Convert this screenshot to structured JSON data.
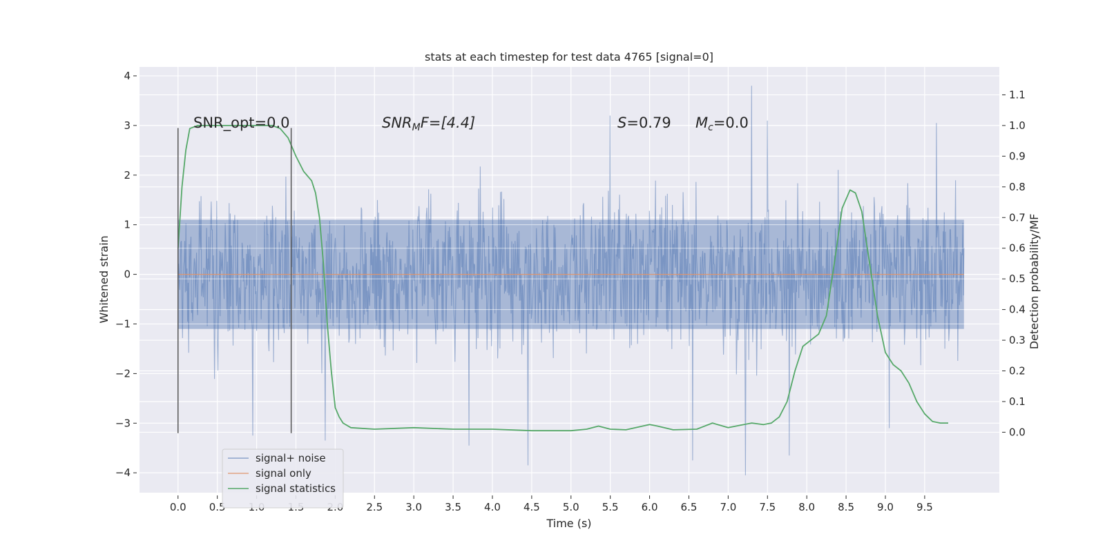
{
  "chart_data": {
    "type": "line",
    "title": "stats at each timestep for test data 4765 [signal=0]",
    "xlabel": "Time (s)",
    "ylabel": "Whitened strain",
    "ylabel_right": "Detection probability/MF",
    "xlim": [
      -0.49,
      10.45
    ],
    "ylim": [
      -4.4,
      4.18
    ],
    "ylim_right": [
      -0.197,
      1.191
    ],
    "x_ticks": [
      "0.0",
      "0.5",
      "1.0",
      "1.5",
      "2.0",
      "2.5",
      "3.0",
      "3.5",
      "4.0",
      "4.5",
      "5.0",
      "5.5",
      "6.0",
      "6.5",
      "7.0",
      "7.5",
      "8.0",
      "8.5",
      "9.0",
      "9.5"
    ],
    "y_ticks": [
      "−4",
      "−3",
      "−2",
      "−1",
      "0",
      "1",
      "2",
      "3",
      "4"
    ],
    "y_ticks_right": [
      "0.0",
      "0.1",
      "0.2",
      "0.3",
      "0.4",
      "0.5",
      "0.6",
      "0.7",
      "0.8",
      "0.9",
      "1.0",
      "1.1"
    ],
    "grid": true,
    "legend_position": "lower-left",
    "annotations": {
      "snr_opt": "SNR_opt=0.0",
      "snr_mf_base": "SNR",
      "snr_mf_sub": "M",
      "snr_mf_rest": "F=[4.4]",
      "s_var": "S",
      "s_val": "=0.79",
      "mc_var": "M",
      "mc_sub": "c",
      "mc_val": "=0.0"
    },
    "vertical_markers": [
      0.0,
      1.44
    ],
    "marker_range": [
      -3.2,
      2.95
    ],
    "series": [
      {
        "name": "signal+ noise",
        "color": "#4c72b0",
        "axis": "left",
        "kind": "noise",
        "x_range": [
          0.0,
          10.0
        ],
        "core_band": [
          -1.1,
          1.1
        ],
        "typical_extremes": [
          -2.2,
          2.3
        ],
        "notable_peaks": [
          {
            "x": 7.3,
            "y": 3.8
          },
          {
            "x": 4.45,
            "y": -3.85
          },
          {
            "x": 7.22,
            "y": -4.05
          },
          {
            "x": 6.55,
            "y": -3.75
          },
          {
            "x": 7.78,
            "y": -3.65
          },
          {
            "x": 3.7,
            "y": -3.45
          },
          {
            "x": 1.87,
            "y": -3.35
          },
          {
            "x": 0.95,
            "y": -3.25
          },
          {
            "x": 9.05,
            "y": -3.1
          },
          {
            "x": 5.5,
            "y": 3.2
          },
          {
            "x": 9.65,
            "y": 3.05
          },
          {
            "x": 7.5,
            "y": 3.1
          }
        ]
      },
      {
        "name": "signal only",
        "color": "#dd8452",
        "axis": "left",
        "kind": "line",
        "points": [
          [
            0.0,
            0.0
          ],
          [
            10.0,
            0.0
          ]
        ]
      },
      {
        "name": "signal statistics",
        "color": "#55a868",
        "axis": "right",
        "kind": "line",
        "points": [
          [
            0.0,
            0.6
          ],
          [
            0.05,
            0.8
          ],
          [
            0.1,
            0.92
          ],
          [
            0.15,
            0.99
          ],
          [
            0.25,
            1.0
          ],
          [
            0.4,
            1.0
          ],
          [
            0.6,
            1.0
          ],
          [
            0.8,
            1.0
          ],
          [
            1.0,
            1.0
          ],
          [
            1.2,
            1.0
          ],
          [
            1.3,
            0.99
          ],
          [
            1.4,
            0.96
          ],
          [
            1.5,
            0.9
          ],
          [
            1.6,
            0.85
          ],
          [
            1.7,
            0.82
          ],
          [
            1.75,
            0.78
          ],
          [
            1.8,
            0.7
          ],
          [
            1.85,
            0.55
          ],
          [
            1.9,
            0.35
          ],
          [
            1.95,
            0.2
          ],
          [
            2.0,
            0.08
          ],
          [
            2.05,
            0.05
          ],
          [
            2.1,
            0.03
          ],
          [
            2.2,
            0.015
          ],
          [
            2.5,
            0.01
          ],
          [
            3.0,
            0.015
          ],
          [
            3.5,
            0.01
          ],
          [
            4.0,
            0.01
          ],
          [
            4.5,
            0.005
          ],
          [
            5.0,
            0.005
          ],
          [
            5.2,
            0.01
          ],
          [
            5.35,
            0.02
          ],
          [
            5.5,
            0.01
          ],
          [
            5.7,
            0.008
          ],
          [
            6.0,
            0.025
          ],
          [
            6.1,
            0.02
          ],
          [
            6.3,
            0.008
          ],
          [
            6.6,
            0.01
          ],
          [
            6.8,
            0.03
          ],
          [
            7.0,
            0.015
          ],
          [
            7.2,
            0.025
          ],
          [
            7.3,
            0.03
          ],
          [
            7.45,
            0.025
          ],
          [
            7.55,
            0.03
          ],
          [
            7.65,
            0.05
          ],
          [
            7.75,
            0.1
          ],
          [
            7.85,
            0.2
          ],
          [
            7.95,
            0.28
          ],
          [
            8.05,
            0.3
          ],
          [
            8.15,
            0.32
          ],
          [
            8.25,
            0.38
          ],
          [
            8.35,
            0.55
          ],
          [
            8.45,
            0.73
          ],
          [
            8.55,
            0.79
          ],
          [
            8.62,
            0.78
          ],
          [
            8.7,
            0.72
          ],
          [
            8.8,
            0.55
          ],
          [
            8.9,
            0.38
          ],
          [
            9.0,
            0.26
          ],
          [
            9.1,
            0.22
          ],
          [
            9.2,
            0.2
          ],
          [
            9.3,
            0.16
          ],
          [
            9.4,
            0.1
          ],
          [
            9.5,
            0.06
          ],
          [
            9.6,
            0.035
          ],
          [
            9.7,
            0.03
          ],
          [
            9.8,
            0.03
          ]
        ]
      }
    ]
  }
}
